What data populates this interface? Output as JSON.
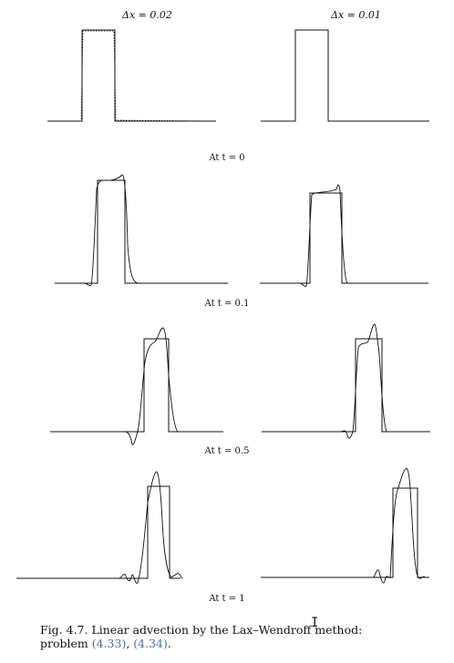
{
  "columns": [
    {
      "label": "Δx = 0.02"
    },
    {
      "label": "Δx = 0.01"
    }
  ],
  "rows": [
    {
      "label": "At t = 0"
    },
    {
      "label": "At t = 0.1"
    },
    {
      "label": "At t = 0.5"
    },
    {
      "label": "At t = 1"
    }
  ],
  "caption": {
    "prefix": "Fig. 4.7. Linear advection by the Lax–Wendroff method:",
    "line2_start": "problem ",
    "ref1": "(4.33)",
    "sep": ", ",
    "ref2": "(4.34)",
    "end": "."
  }
}
